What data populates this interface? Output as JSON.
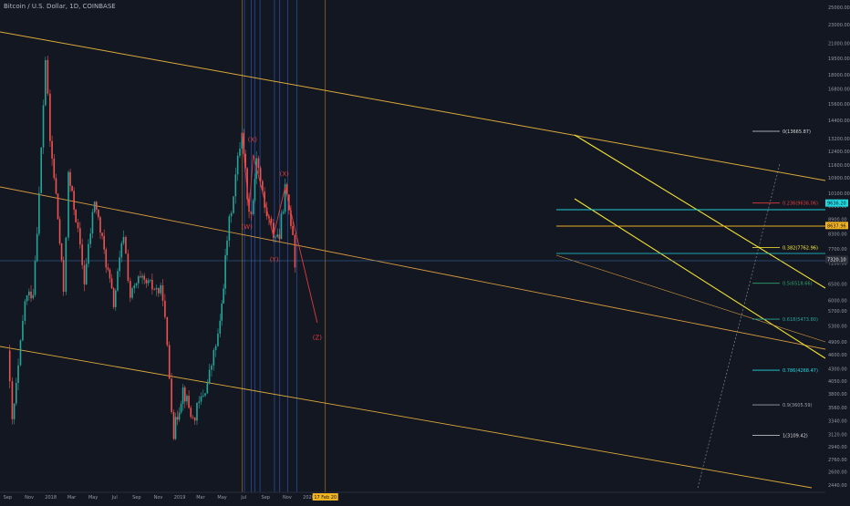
{
  "header": {
    "symbol_title": "Bitcoin / U.S. Dollar, 1D, COINBASE"
  },
  "colors": {
    "background": "#131722",
    "bull": "#26a69a",
    "bear": "#ef5350",
    "fib_line": "#d9d9d9",
    "channel": "#e6b13c",
    "channel_down": "#e0a040",
    "yellow": "#ffee33",
    "cyan": "#1fd8e0",
    "gold": "#f2b320",
    "wave_red": "#e23c3c",
    "vline_blue": "#2f63d8",
    "vline_orange": "#c98a2a",
    "teal": "#26a69a"
  },
  "chart_data": {
    "type": "candlestick",
    "title": "Bitcoin / U.S. Dollar, 1D, COINBASE",
    "x_tick_labels": [
      "Sep",
      "Nov",
      "2018",
      "Mar",
      "May",
      "Jul",
      "Sep",
      "Nov",
      "2019",
      "Mar",
      "May",
      "Jul",
      "Sep",
      "Nov",
      "2020"
    ],
    "y_tick_labels": [
      "25000.00",
      "23000.00",
      "21000.00",
      "19500.00",
      "18000.00",
      "16800.00",
      "15600.00",
      "14400.00",
      "13200.00",
      "12400.00",
      "11600.00",
      "10900.00",
      "10100.00",
      "9500.00",
      "8900.00",
      "8300.00",
      "7700.00",
      "7200.00",
      "6500.00",
      "6000.00",
      "5700.00",
      "5300.00",
      "4900.00",
      "4600.00",
      "4300.00",
      "4050.00",
      "3800.00",
      "3560.00",
      "3340.00",
      "3120.00",
      "2940.00",
      "2760.00",
      "2600.00",
      "2440.00"
    ],
    "y_scale": "log",
    "y_range": [
      2440,
      25000
    ],
    "price_path": [
      {
        "date": "2017-08-31",
        "price": 4700
      },
      {
        "date": "2017-09-14",
        "price": 3300
      },
      {
        "date": "2017-10-01",
        "price": 4300
      },
      {
        "date": "2017-10-20",
        "price": 6000
      },
      {
        "date": "2017-11-12",
        "price": 6300
      },
      {
        "date": "2017-11-29",
        "price": 10000
      },
      {
        "date": "2017-12-17",
        "price": 19500
      },
      {
        "date": "2017-12-30",
        "price": 13000
      },
      {
        "date": "2018-01-16",
        "price": 10000
      },
      {
        "date": "2018-02-06",
        "price": 6300
      },
      {
        "date": "2018-02-20",
        "price": 11000
      },
      {
        "date": "2018-03-13",
        "price": 9000
      },
      {
        "date": "2018-04-06",
        "price": 6600
      },
      {
        "date": "2018-05-05",
        "price": 9800
      },
      {
        "date": "2018-06-28",
        "price": 5900
      },
      {
        "date": "2018-07-26",
        "price": 8300
      },
      {
        "date": "2018-08-14",
        "price": 6100
      },
      {
        "date": "2018-09-06",
        "price": 6600
      },
      {
        "date": "2018-10-15",
        "price": 6400
      },
      {
        "date": "2018-11-14",
        "price": 6200
      },
      {
        "date": "2018-12-15",
        "price": 3150
      },
      {
        "date": "2019-01-10",
        "price": 3900
      },
      {
        "date": "2019-02-07",
        "price": 3350
      },
      {
        "date": "2019-03-20",
        "price": 4000
      },
      {
        "date": "2019-04-25",
        "price": 5300
      },
      {
        "date": "2019-05-15",
        "price": 8100
      },
      {
        "date": "2019-06-26",
        "price": 13800
      },
      {
        "date": "2019-07-16",
        "price": 9100
      },
      {
        "date": "2019-07-28",
        "price": 9800
      },
      {
        "date": "2019-08-06",
        "price": 12200
      },
      {
        "date": "2019-08-29",
        "price": 9400
      },
      {
        "date": "2019-09-23",
        "price": 8300
      },
      {
        "date": "2019-10-10",
        "price": 8200
      },
      {
        "date": "2019-10-26",
        "price": 10300
      },
      {
        "date": "2019-11-17",
        "price": 8400
      },
      {
        "date": "2019-11-23",
        "price": 7200
      }
    ],
    "fibonacci_levels": [
      {
        "label": "0(13665.87)",
        "color": "#d9d9d9"
      },
      {
        "label": "0.236(9636.06)",
        "color": "#e23c3c"
      },
      {
        "label": "0.382(7762.96)",
        "color": "#ffee33"
      },
      {
        "label": "0.5(6518.66)",
        "color": "#2fa36b"
      },
      {
        "label": "0.618(5473.80)",
        "color": "#26a69a"
      },
      {
        "label": "0.786(4268.47)",
        "color": "#1fd8e0"
      },
      {
        "label": "0.9(3605.59)",
        "color": "#9aa0a6"
      },
      {
        "label": "1(3109.42)",
        "color": "#d9d9d9"
      }
    ],
    "wave_labels": [
      "(X)",
      "(W)",
      "(Y)",
      "(X)",
      "(Z)"
    ],
    "price_scale_tags": [
      {
        "text": "9636.20",
        "bg": "#1fd8e0",
        "fg": "#131722"
      },
      {
        "text": "8637.96",
        "bg": "#f2b320",
        "fg": "#131722"
      },
      {
        "text": "7328.17",
        "bg": "#2a2e39",
        "fg": "#e6e6e6"
      },
      {
        "text": "7320.10",
        "bg": "#2a2e39",
        "fg": "#e6e6e6"
      }
    ],
    "axis_tag": "17 Feb 20",
    "grid": false,
    "legend": "none"
  }
}
